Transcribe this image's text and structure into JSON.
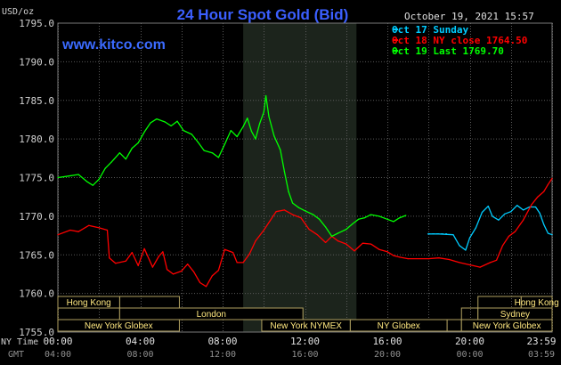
{
  "chart_data": {
    "type": "line",
    "title": "24 Hour Spot Gold (Bid)",
    "unit_label": "USD/oz",
    "website": "www.kitco.com",
    "timestamp": "October 19, 2021 15:57",
    "y_range": [
      1755,
      1795
    ],
    "y_ticks": [
      "1795.0",
      "1790.0",
      "1785.0",
      "1780.0",
      "1775.0",
      "1770.0",
      "1765.0",
      "1760.0",
      "1755.0"
    ],
    "x_range_hours": [
      0,
      24
    ],
    "x_ticks_ny": [
      "00:00",
      "04:00",
      "08:00",
      "12:00",
      "16:00",
      "20:00",
      "23:59"
    ],
    "x_ticks_gmt": [
      "04:00",
      "08:00",
      "12:00",
      "16:00",
      "20:00",
      "00:00",
      "03:59"
    ],
    "x_row_label_ny": "NY Time",
    "x_row_label_gmt": "GMT",
    "shaded_session_hours": [
      9,
      14.5
    ],
    "grid": true,
    "legend_position": "top-right",
    "series": [
      {
        "name": "Oct 17 Sunday",
        "color": "#00ccff",
        "points": [
          [
            18.0,
            1767.7
          ],
          [
            18.5,
            1767.7
          ],
          [
            19.2,
            1767.6
          ],
          [
            19.5,
            1766.2
          ],
          [
            19.8,
            1765.6
          ],
          [
            20.0,
            1767.2
          ],
          [
            20.3,
            1768.5
          ],
          [
            20.6,
            1770.5
          ],
          [
            20.9,
            1771.3
          ],
          [
            21.1,
            1770.0
          ],
          [
            21.4,
            1769.5
          ],
          [
            21.7,
            1770.3
          ],
          [
            22.0,
            1770.6
          ],
          [
            22.3,
            1771.4
          ],
          [
            22.6,
            1770.8
          ],
          [
            22.9,
            1771.2
          ],
          [
            23.2,
            1771.2
          ],
          [
            23.4,
            1770.4
          ],
          [
            23.6,
            1768.9
          ],
          [
            23.8,
            1767.8
          ],
          [
            24.0,
            1767.6
          ]
        ]
      },
      {
        "name": "Oct 18 NY close 1764.50",
        "color": "#ff0000",
        "points": [
          [
            0.0,
            1767.6
          ],
          [
            0.6,
            1768.2
          ],
          [
            1.0,
            1768.0
          ],
          [
            1.5,
            1768.8
          ],
          [
            2.0,
            1768.5
          ],
          [
            2.4,
            1768.2
          ],
          [
            2.5,
            1764.6
          ],
          [
            2.8,
            1763.9
          ],
          [
            3.3,
            1764.2
          ],
          [
            3.6,
            1765.3
          ],
          [
            3.9,
            1763.6
          ],
          [
            4.2,
            1765.8
          ],
          [
            4.6,
            1763.4
          ],
          [
            4.9,
            1764.8
          ],
          [
            5.1,
            1765.4
          ],
          [
            5.3,
            1763.1
          ],
          [
            5.6,
            1762.5
          ],
          [
            6.0,
            1762.9
          ],
          [
            6.3,
            1763.8
          ],
          [
            6.6,
            1762.8
          ],
          [
            6.9,
            1761.4
          ],
          [
            7.2,
            1760.9
          ],
          [
            7.5,
            1762.3
          ],
          [
            7.8,
            1763.0
          ],
          [
            8.1,
            1765.7
          ],
          [
            8.5,
            1765.3
          ],
          [
            8.7,
            1764.0
          ],
          [
            9.0,
            1764.0
          ],
          [
            9.3,
            1765.1
          ],
          [
            9.6,
            1766.8
          ],
          [
            10.0,
            1768.2
          ],
          [
            10.3,
            1769.4
          ],
          [
            10.6,
            1770.6
          ],
          [
            11.0,
            1770.8
          ],
          [
            11.4,
            1770.2
          ],
          [
            11.8,
            1769.8
          ],
          [
            12.2,
            1768.3
          ],
          [
            12.6,
            1767.6
          ],
          [
            13.0,
            1766.6
          ],
          [
            13.3,
            1767.4
          ],
          [
            13.6,
            1766.8
          ],
          [
            14.0,
            1766.4
          ],
          [
            14.4,
            1765.5
          ],
          [
            14.8,
            1766.5
          ],
          [
            15.2,
            1766.4
          ],
          [
            15.6,
            1765.7
          ],
          [
            16.0,
            1765.4
          ],
          [
            16.3,
            1764.9
          ],
          [
            16.6,
            1764.7
          ],
          [
            17.0,
            1764.5
          ],
          [
            18.0,
            1764.5
          ],
          [
            18.5,
            1764.6
          ],
          [
            19.0,
            1764.4
          ],
          [
            19.5,
            1764.0
          ],
          [
            20.0,
            1763.7
          ],
          [
            20.5,
            1763.4
          ],
          [
            21.0,
            1764.0
          ],
          [
            21.3,
            1764.3
          ],
          [
            21.6,
            1766.2
          ],
          [
            21.9,
            1767.4
          ],
          [
            22.2,
            1768.0
          ],
          [
            22.6,
            1769.5
          ],
          [
            23.0,
            1771.5
          ],
          [
            23.3,
            1772.5
          ],
          [
            23.6,
            1773.2
          ],
          [
            23.8,
            1774.1
          ],
          [
            24.0,
            1774.9
          ]
        ]
      },
      {
        "name": "Oct 19 Last 1769.70",
        "color": "#00ff00",
        "points": [
          [
            0.0,
            1775.0
          ],
          [
            0.5,
            1775.2
          ],
          [
            1.0,
            1775.4
          ],
          [
            1.4,
            1774.5
          ],
          [
            1.7,
            1774.0
          ],
          [
            2.0,
            1774.8
          ],
          [
            2.3,
            1776.2
          ],
          [
            2.6,
            1777.0
          ],
          [
            3.0,
            1778.2
          ],
          [
            3.3,
            1777.4
          ],
          [
            3.6,
            1778.8
          ],
          [
            3.9,
            1779.5
          ],
          [
            4.2,
            1780.9
          ],
          [
            4.5,
            1782.1
          ],
          [
            4.8,
            1782.6
          ],
          [
            5.2,
            1782.2
          ],
          [
            5.5,
            1781.7
          ],
          [
            5.8,
            1782.3
          ],
          [
            6.1,
            1781.1
          ],
          [
            6.5,
            1780.6
          ],
          [
            6.8,
            1779.6
          ],
          [
            7.1,
            1778.5
          ],
          [
            7.5,
            1778.2
          ],
          [
            7.8,
            1777.6
          ],
          [
            8.1,
            1779.3
          ],
          [
            8.4,
            1781.1
          ],
          [
            8.7,
            1780.3
          ],
          [
            9.0,
            1781.6
          ],
          [
            9.2,
            1782.7
          ],
          [
            9.4,
            1781.0
          ],
          [
            9.6,
            1780.0
          ],
          [
            9.8,
            1782.0
          ],
          [
            10.0,
            1783.5
          ],
          [
            10.1,
            1785.6
          ],
          [
            10.25,
            1782.9
          ],
          [
            10.5,
            1780.4
          ],
          [
            10.8,
            1778.6
          ],
          [
            11.0,
            1775.8
          ],
          [
            11.2,
            1773.2
          ],
          [
            11.4,
            1771.7
          ],
          [
            11.7,
            1771.1
          ],
          [
            12.0,
            1770.7
          ],
          [
            12.4,
            1770.2
          ],
          [
            12.7,
            1769.6
          ],
          [
            13.0,
            1768.6
          ],
          [
            13.3,
            1767.4
          ],
          [
            13.6,
            1767.8
          ],
          [
            14.0,
            1768.3
          ],
          [
            14.3,
            1769.0
          ],
          [
            14.6,
            1769.6
          ],
          [
            14.9,
            1769.8
          ],
          [
            15.2,
            1770.2
          ],
          [
            15.6,
            1770.0
          ],
          [
            16.0,
            1769.6
          ],
          [
            16.3,
            1769.3
          ],
          [
            16.6,
            1769.8
          ],
          [
            16.9,
            1770.1
          ]
        ]
      }
    ],
    "markets_upper": [
      "Hong Kong",
      "London",
      "New York NYMEX",
      "NY Globex"
    ],
    "markets_lower": [
      "New York Globex",
      "Hong Kong",
      "Sydney",
      "New York Globex"
    ]
  }
}
